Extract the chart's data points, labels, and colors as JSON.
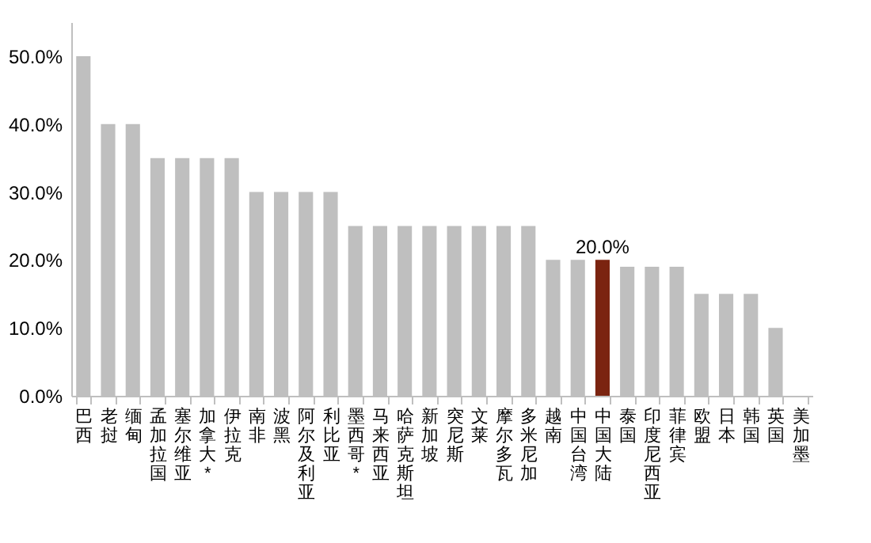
{
  "chart_data": {
    "type": "bar",
    "categories": [
      "巴西",
      "老挝",
      "缅甸",
      "孟加拉国",
      "塞尔维亚",
      "加拿大*",
      "伊拉克",
      "南非",
      "波黑",
      "阿尔及利亚",
      "利比亚",
      "墨西哥*",
      "马来西亚",
      "哈萨克斯坦",
      "新加坡",
      "突尼斯",
      "文莱",
      "摩尔多瓦",
      "多米尼加",
      "越南",
      "中国台湾",
      "中国大陆",
      "泰国",
      "印度尼西亚",
      "菲律宾",
      "欧盟",
      "日本",
      "韩国",
      "英国",
      "美加墨"
    ],
    "values": [
      50,
      40,
      40,
      35,
      35,
      35,
      35,
      30,
      30,
      30,
      30,
      25,
      25,
      25,
      25,
      25,
      25,
      25,
      25,
      20,
      20,
      20,
      19,
      19,
      19,
      15,
      15,
      15,
      10,
      0
    ],
    "colors": [
      "#bfbfbf",
      "#bfbfbf",
      "#bfbfbf",
      "#bfbfbf",
      "#bfbfbf",
      "#bfbfbf",
      "#bfbfbf",
      "#bfbfbf",
      "#bfbfbf",
      "#bfbfbf",
      "#bfbfbf",
      "#bfbfbf",
      "#bfbfbf",
      "#bfbfbf",
      "#bfbfbf",
      "#bfbfbf",
      "#bfbfbf",
      "#bfbfbf",
      "#bfbfbf",
      "#bfbfbf",
      "#bfbfbf",
      "#7b2410",
      "#bfbfbf",
      "#bfbfbf",
      "#bfbfbf",
      "#bfbfbf",
      "#bfbfbf",
      "#bfbfbf",
      "#bfbfbf",
      "#bfbfbf"
    ],
    "value_labels": [
      null,
      null,
      null,
      null,
      null,
      null,
      null,
      null,
      null,
      null,
      null,
      null,
      null,
      null,
      null,
      null,
      null,
      null,
      null,
      null,
      null,
      "20.0%",
      null,
      null,
      null,
      null,
      null,
      null,
      null,
      null
    ],
    "ylim": [
      0,
      55
    ],
    "yticks": [
      {
        "value": 0,
        "label": "0.0%"
      },
      {
        "value": 10,
        "label": "10.0%"
      },
      {
        "value": 20,
        "label": "20.0%"
      },
      {
        "value": 30,
        "label": "30.0%"
      },
      {
        "value": 40,
        "label": "40.0%"
      },
      {
        "value": 50,
        "label": "50.0%"
      }
    ],
    "grid": false,
    "legend": false
  }
}
